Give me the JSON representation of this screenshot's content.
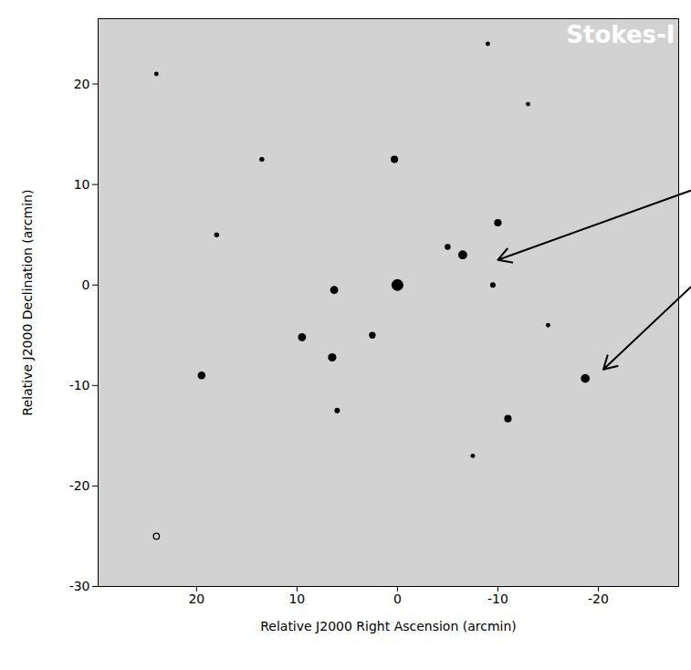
{
  "chart_data": {
    "type": "scatter",
    "title": "Stokes-I",
    "x_label": "Relative J2000 Right Ascension (arcmin)",
    "y_label": "Relative J2000 Declination (arcmin)",
    "xlim": [
      29.8,
      -28
    ],
    "ylim": [
      -30,
      26.5
    ],
    "xticks": [
      20,
      10,
      0,
      -10,
      -20
    ],
    "yticks": [
      -30,
      -20,
      -10,
      0,
      10,
      20
    ],
    "grid": false,
    "series": [
      {
        "marker": "dot",
        "color": "#000000",
        "x": [
          0,
          -6.5,
          -5,
          -10,
          -9.5,
          0.3,
          6.3,
          9.5,
          6.5,
          2.5,
          6,
          19.5,
          -18.7,
          -11,
          -7.5,
          13.5,
          24,
          18,
          -13,
          -9,
          -15
        ],
        "y": [
          0,
          3,
          3.8,
          6.2,
          0,
          12.5,
          -0.5,
          -5.2,
          -7.2,
          -5,
          -12.5,
          -9,
          -9.3,
          -13.3,
          -17,
          12.5,
          21,
          5,
          18,
          24,
          -4
        ],
        "sizes": [
          1.4,
          0.8,
          0.35,
          0.55,
          0.3,
          0.55,
          0.65,
          0.65,
          0.7,
          0.45,
          0.3,
          0.6,
          0.8,
          0.55,
          0.2,
          0.25,
          0.2,
          0.25,
          0.2,
          0.2,
          0.2
        ]
      },
      {
        "marker": "ring",
        "color": "#000000",
        "x": [
          24
        ],
        "y": [
          -25
        ],
        "sizes": [
          0.35
        ]
      }
    ],
    "arrows": [
      {
        "x1": -29.2,
        "y1": 9.4,
        "x2": -10,
        "y2": 2.5
      },
      {
        "x1": -29.2,
        "y1": -0.2,
        "x2": -20.5,
        "y2": -8.4
      }
    ]
  }
}
